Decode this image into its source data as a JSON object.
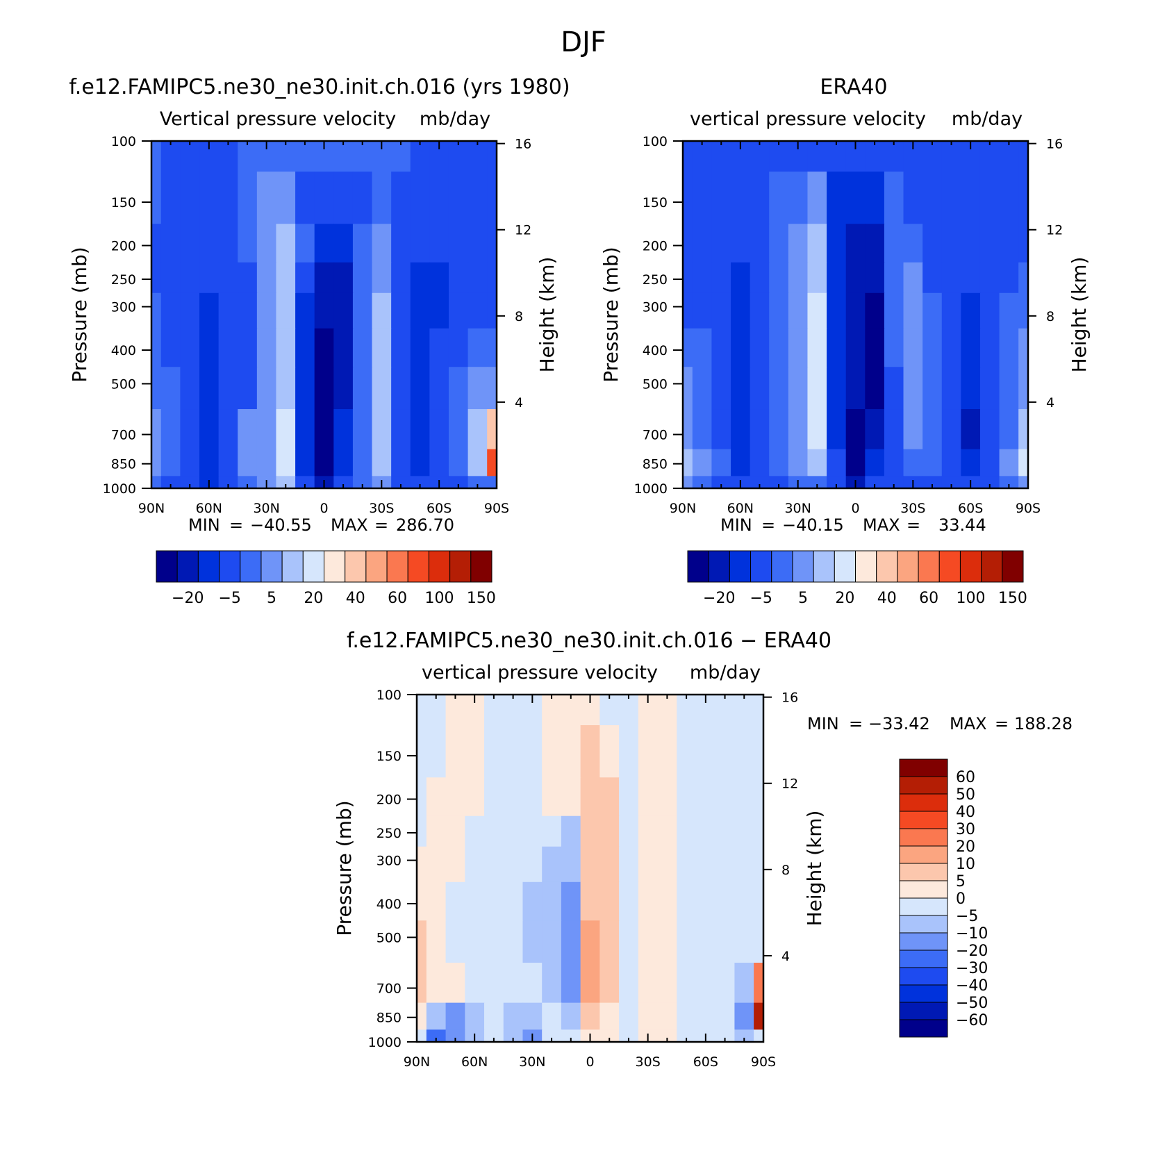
{
  "figure": {
    "season_title": "DJF"
  },
  "colors": {
    "panel_scale": [
      "#00008b",
      "#0019b4",
      "#0032dc",
      "#1e4bf0",
      "#3c6cf6",
      "#6f94f8",
      "#a9c3fb",
      "#d6e6fc",
      "#fde9dc",
      "#fcc7ad",
      "#fba580",
      "#fa7850",
      "#f54a23",
      "#dc2d0c",
      "#b41e05",
      "#800000"
    ],
    "diff_scale": [
      "#800000",
      "#b41e05",
      "#dc2d0c",
      "#f54a23",
      "#fa7850",
      "#fba580",
      "#fcc7ad",
      "#fde9dc",
      "#d6e6fc",
      "#a9c3fb",
      "#6f94f8",
      "#3c6cf6",
      "#1e4bf0",
      "#0032dc",
      "#0019b4",
      "#00008b"
    ],
    "missing": "#ffffff"
  },
  "chart_data": [
    {
      "type": "heatmap",
      "title": "f.e12.FAMIPC5.ne30_ne30.init.ch.016 (yrs 1980)",
      "subtitle": "Vertical pressure velocity",
      "units": "mb/day",
      "ylabel": "Pressure (mb)",
      "ylabel_right": "Height (km)",
      "x_ticks": [
        "90N",
        "60N",
        "30N",
        "0",
        "30S",
        "60S",
        "90S"
      ],
      "y_ticks": [
        "100",
        "150",
        "200",
        "250",
        "300",
        "400",
        "500",
        "700",
        "850",
        "1000"
      ],
      "y_right_ticks": [
        "16",
        "12",
        "8",
        "4"
      ],
      "ylim": [
        1000,
        100
      ],
      "xlim": [
        "90N",
        "90S"
      ],
      "stats": {
        "min_label": "MIN",
        "min": "−40.55",
        "max_label": "MAX",
        "max": "286.70"
      },
      "colorbar": {
        "orientation": "horizontal",
        "labels": [
          "−20",
          "−5",
          "5",
          "20",
          "40",
          "60",
          "100",
          "150"
        ]
      },
      "field_lat": [
        90,
        80,
        70,
        60,
        50,
        40,
        30,
        20,
        10,
        0,
        -10,
        -20,
        -30,
        -40,
        -50,
        -60,
        -70,
        -80,
        -90
      ],
      "field_plev": [
        100,
        150,
        200,
        250,
        300,
        400,
        500,
        700,
        850,
        1000
      ],
      "field_class": [
        [
          4,
          3,
          3,
          3,
          3,
          4,
          4,
          4,
          4,
          4,
          4,
          4,
          4,
          4,
          3,
          3,
          3,
          3,
          3
        ],
        [
          4,
          3,
          3,
          3,
          3,
          4,
          5,
          5,
          3,
          3,
          3,
          3,
          4,
          3,
          3,
          3,
          3,
          3,
          3
        ],
        [
          3,
          3,
          3,
          3,
          3,
          4,
          5,
          6,
          4,
          2,
          2,
          4,
          5,
          3,
          3,
          3,
          3,
          3,
          3
        ],
        [
          3,
          3,
          3,
          3,
          3,
          3,
          5,
          6,
          3,
          1,
          1,
          4,
          5,
          3,
          2,
          2,
          3,
          3,
          3
        ],
        [
          4,
          3,
          3,
          2,
          3,
          3,
          5,
          6,
          2,
          1,
          1,
          4,
          6,
          3,
          2,
          2,
          3,
          3,
          3
        ],
        [
          4,
          3,
          3,
          2,
          3,
          3,
          5,
          6,
          2,
          0,
          1,
          4,
          6,
          3,
          2,
          3,
          3,
          4,
          4
        ],
        [
          4,
          4,
          3,
          2,
          3,
          3,
          5,
          6,
          2,
          0,
          1,
          4,
          6,
          3,
          2,
          3,
          4,
          5,
          5
        ],
        [
          5,
          4,
          3,
          2,
          3,
          5,
          5,
          7,
          2,
          0,
          2,
          4,
          6,
          3,
          2,
          3,
          4,
          6,
          9
        ],
        [
          5,
          4,
          3,
          2,
          3,
          5,
          5,
          7,
          2,
          0,
          2,
          4,
          6,
          3,
          2,
          3,
          4,
          6,
          12
        ],
        [
          4,
          3,
          3,
          2,
          3,
          4,
          5,
          6,
          3,
          1,
          3,
          4,
          5,
          3,
          3,
          3,
          3,
          4,
          4
        ]
      ]
    },
    {
      "type": "heatmap",
      "title": "ERA40",
      "subtitle": "vertical pressure velocity",
      "units": "mb/day",
      "ylabel": "Pressure (mb)",
      "ylabel_right": "Height (km)",
      "x_ticks": [
        "90N",
        "60N",
        "30N",
        "0",
        "30S",
        "60S",
        "90S"
      ],
      "y_ticks": [
        "100",
        "150",
        "200",
        "250",
        "300",
        "400",
        "500",
        "700",
        "850",
        "1000"
      ],
      "y_right_ticks": [
        "16",
        "12",
        "8",
        "4"
      ],
      "ylim": [
        1000,
        100
      ],
      "xlim": [
        "90N",
        "90S"
      ],
      "stats": {
        "min_label": "MIN",
        "min": "−40.15",
        "max_label": "MAX",
        "max": "33.44"
      },
      "colorbar": {
        "orientation": "horizontal",
        "labels": [
          "−20",
          "−5",
          "5",
          "20",
          "40",
          "60",
          "100",
          "150"
        ]
      },
      "field_lat": [
        90,
        80,
        70,
        60,
        50,
        40,
        30,
        20,
        10,
        0,
        -10,
        -20,
        -30,
        -40,
        -50,
        -60,
        -70,
        -80,
        -90
      ],
      "field_plev": [
        100,
        150,
        200,
        250,
        300,
        400,
        500,
        700,
        850,
        1000
      ],
      "field_class": [
        [
          3,
          3,
          3,
          3,
          3,
          3,
          3,
          3,
          3,
          3,
          3,
          3,
          3,
          3,
          3,
          3,
          3,
          3,
          3
        ],
        [
          3,
          3,
          3,
          3,
          3,
          4,
          4,
          5,
          2,
          2,
          2,
          4,
          3,
          3,
          3,
          3,
          3,
          3,
          3
        ],
        [
          3,
          3,
          3,
          3,
          3,
          4,
          5,
          6,
          2,
          1,
          1,
          4,
          4,
          3,
          3,
          3,
          3,
          3,
          3
        ],
        [
          3,
          3,
          3,
          2,
          3,
          4,
          5,
          6,
          2,
          1,
          1,
          4,
          5,
          3,
          3,
          3,
          3,
          3,
          4
        ],
        [
          3,
          3,
          3,
          2,
          3,
          4,
          5,
          7,
          2,
          1,
          0,
          4,
          5,
          4,
          3,
          2,
          3,
          4,
          4
        ],
        [
          4,
          4,
          3,
          2,
          3,
          4,
          5,
          7,
          2,
          1,
          0,
          4,
          5,
          4,
          3,
          2,
          3,
          4,
          5
        ],
        [
          5,
          4,
          3,
          2,
          3,
          4,
          5,
          7,
          2,
          1,
          0,
          3,
          5,
          4,
          3,
          2,
          3,
          4,
          5
        ],
        [
          5,
          4,
          3,
          2,
          3,
          4,
          5,
          7,
          2,
          0,
          1,
          3,
          5,
          4,
          3,
          1,
          3,
          4,
          6
        ],
        [
          6,
          5,
          4,
          2,
          3,
          4,
          5,
          6,
          3,
          0,
          2,
          3,
          4,
          4,
          3,
          2,
          3,
          5,
          7
        ],
        [
          5,
          4,
          3,
          3,
          3,
          3,
          4,
          4,
          3,
          1,
          3,
          3,
          3,
          3,
          3,
          3,
          3,
          4,
          5
        ]
      ]
    },
    {
      "type": "heatmap",
      "title": "f.e12.FAMIPC5.ne30_ne30.init.ch.016 − ERA40",
      "subtitle": "vertical pressure velocity",
      "units": "mb/day",
      "ylabel": "Pressure (mb)",
      "ylabel_right": "Height (km)",
      "x_ticks": [
        "90N",
        "60N",
        "30N",
        "0",
        "30S",
        "60S",
        "90S"
      ],
      "y_ticks": [
        "100",
        "150",
        "200",
        "250",
        "300",
        "400",
        "500",
        "700",
        "850",
        "1000"
      ],
      "y_right_ticks": [
        "16",
        "12",
        "8",
        "4"
      ],
      "ylim": [
        1000,
        100
      ],
      "xlim": [
        "90N",
        "90S"
      ],
      "stats": {
        "min_label": "MIN",
        "min": "−33.42",
        "max_label": "MAX",
        "max": "188.28"
      },
      "colorbar": {
        "orientation": "vertical",
        "labels": [
          "60",
          "50",
          "40",
          "30",
          "20",
          "10",
          "5",
          "0",
          "−5",
          "−10",
          "−20",
          "−30",
          "−40",
          "−50",
          "−60"
        ]
      },
      "field_lat": [
        90,
        80,
        70,
        60,
        50,
        40,
        30,
        20,
        10,
        0,
        -10,
        -20,
        -30,
        -40,
        -50,
        -60,
        -70,
        -80,
        -90
      ],
      "field_plev": [
        100,
        150,
        200,
        250,
        300,
        400,
        500,
        700,
        850,
        1000
      ],
      "field_class": [
        [
          8,
          8,
          7,
          7,
          8,
          8,
          8,
          7,
          7,
          7,
          8,
          8,
          7,
          7,
          8,
          8,
          8,
          8,
          8
        ],
        [
          8,
          8,
          7,
          7,
          8,
          8,
          8,
          7,
          7,
          6,
          7,
          8,
          7,
          7,
          8,
          8,
          8,
          8,
          8
        ],
        [
          8,
          7,
          7,
          7,
          8,
          8,
          8,
          7,
          7,
          6,
          6,
          8,
          7,
          7,
          8,
          8,
          8,
          8,
          8
        ],
        [
          8,
          7,
          7,
          8,
          8,
          8,
          8,
          8,
          9,
          6,
          6,
          8,
          7,
          7,
          8,
          8,
          8,
          8,
          8
        ],
        [
          7,
          7,
          7,
          8,
          8,
          8,
          8,
          9,
          9,
          6,
          6,
          8,
          7,
          7,
          8,
          8,
          8,
          8,
          8
        ],
        [
          7,
          7,
          8,
          8,
          8,
          8,
          9,
          9,
          10,
          6,
          6,
          8,
          7,
          7,
          8,
          8,
          8,
          8,
          8
        ],
        [
          6,
          7,
          8,
          8,
          8,
          8,
          9,
          9,
          10,
          5,
          6,
          8,
          7,
          7,
          8,
          8,
          8,
          8,
          8
        ],
        [
          6,
          7,
          7,
          8,
          8,
          8,
          8,
          9,
          10,
          5,
          6,
          8,
          7,
          7,
          8,
          8,
          8,
          9,
          4
        ],
        [
          7,
          9,
          10,
          9,
          8,
          9,
          9,
          8,
          9,
          6,
          7,
          8,
          7,
          7,
          8,
          8,
          8,
          10,
          1
        ],
        [
          8,
          11,
          10,
          9,
          8,
          9,
          10,
          8,
          8,
          7,
          7,
          8,
          7,
          7,
          8,
          8,
          8,
          9,
          8
        ]
      ]
    }
  ]
}
